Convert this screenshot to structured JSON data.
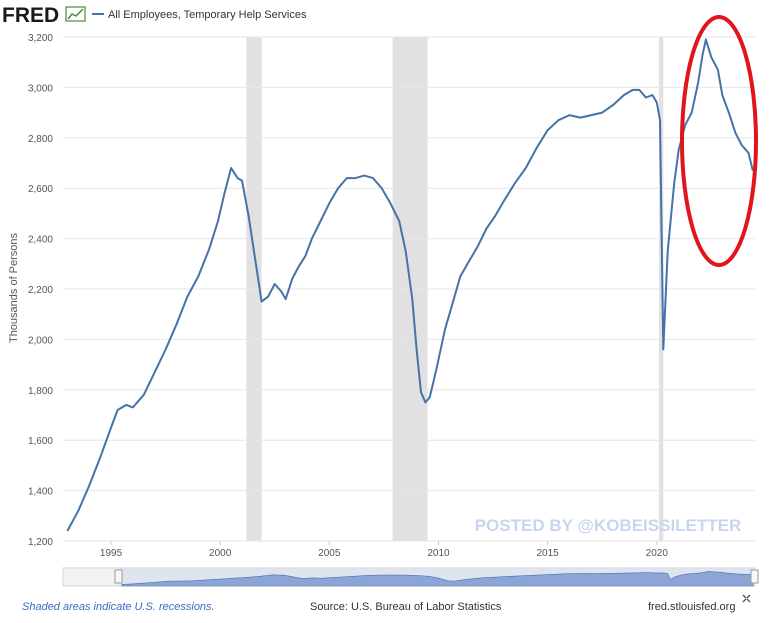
{
  "header": {
    "logo_text": "FRED",
    "legend_label": "All Employees, Temporary Help Services"
  },
  "watermark": "POSTED BY @KOBEISSILETTER",
  "footer": {
    "recession_note": "Shaded areas indicate U.S. recessions.",
    "source": "Source: U.S. Bureau of Labor Statistics",
    "url": "fred.stlouisfed.org"
  },
  "colors": {
    "series": "#4572a7",
    "recession": "#e1e1e1",
    "annotation": "#e0161c",
    "watermark": "#c8d5ef"
  },
  "annotation": {
    "shape": "ellipse",
    "color": "red",
    "highlight_from": 2021.6,
    "highlight_to": 2024.3
  },
  "chart_data": {
    "type": "line",
    "title": "",
    "xlabel": "",
    "ylabel": "Thousands of Persons",
    "xlim": [
      1992.8,
      2024.5
    ],
    "ylim": [
      1200,
      3200
    ],
    "x_ticks": [
      1995,
      2000,
      2005,
      2010,
      2015,
      2020
    ],
    "y_ticks": [
      1200,
      1400,
      1600,
      1800,
      2000,
      2200,
      2400,
      2600,
      2800,
      3000,
      3200
    ],
    "y_tick_labels": [
      "1,200",
      "1,400",
      "1,600",
      "1,800",
      "2,000",
      "2,200",
      "2,400",
      "2,600",
      "2,800",
      "3,000",
      "3,200"
    ],
    "recessions": [
      [
        2001.2,
        2001.9
      ],
      [
        2007.9,
        2009.5
      ],
      [
        2020.1,
        2020.3
      ]
    ],
    "legend": "top-left",
    "grid": true,
    "series": [
      {
        "name": "All Employees, Temporary Help Services",
        "x": [
          1993.0,
          1993.5,
          1994.0,
          1994.5,
          1995.0,
          1995.3,
          1995.7,
          1996.0,
          1996.5,
          1997.0,
          1997.5,
          1998.0,
          1998.5,
          1999.0,
          1999.5,
          1999.9,
          2000.2,
          2000.5,
          2000.8,
          2001.0,
          2001.3,
          2001.6,
          2001.9,
          2002.2,
          2002.5,
          2002.8,
          2003.0,
          2003.3,
          2003.6,
          2003.9,
          2004.2,
          2004.6,
          2005.0,
          2005.4,
          2005.8,
          2006.2,
          2006.6,
          2007.0,
          2007.4,
          2007.8,
          2008.2,
          2008.5,
          2008.8,
          2009.0,
          2009.2,
          2009.4,
          2009.6,
          2009.9,
          2010.3,
          2010.7,
          2011.0,
          2011.4,
          2011.8,
          2012.2,
          2012.6,
          2013.0,
          2013.5,
          2014.0,
          2014.5,
          2015.0,
          2015.5,
          2016.0,
          2016.5,
          2017.0,
          2017.5,
          2018.0,
          2018.5,
          2018.9,
          2019.2,
          2019.5,
          2019.8,
          2020.0,
          2020.15,
          2020.3,
          2020.5,
          2020.8,
          2021.0,
          2021.3,
          2021.6,
          2021.9,
          2022.1,
          2022.25,
          2022.5,
          2022.8,
          2023.0,
          2023.3,
          2023.6,
          2023.9,
          2024.2,
          2024.4
        ],
        "values": [
          1240,
          1320,
          1420,
          1530,
          1650,
          1720,
          1740,
          1730,
          1780,
          1870,
          1960,
          2060,
          2170,
          2250,
          2360,
          2470,
          2580,
          2680,
          2640,
          2630,
          2490,
          2320,
          2150,
          2170,
          2220,
          2190,
          2160,
          2240,
          2290,
          2330,
          2400,
          2470,
          2540,
          2600,
          2640,
          2640,
          2650,
          2640,
          2600,
          2540,
          2470,
          2350,
          2160,
          1960,
          1790,
          1750,
          1770,
          1880,
          2040,
          2160,
          2250,
          2310,
          2370,
          2440,
          2490,
          2550,
          2620,
          2680,
          2760,
          2830,
          2870,
          2890,
          2880,
          2890,
          2900,
          2930,
          2970,
          2990,
          2990,
          2960,
          2970,
          2940,
          2870,
          1960,
          2350,
          2620,
          2750,
          2850,
          2900,
          3020,
          3130,
          3190,
          3120,
          3070,
          2970,
          2900,
          2820,
          2770,
          2740,
          2670
        ]
      }
    ]
  }
}
